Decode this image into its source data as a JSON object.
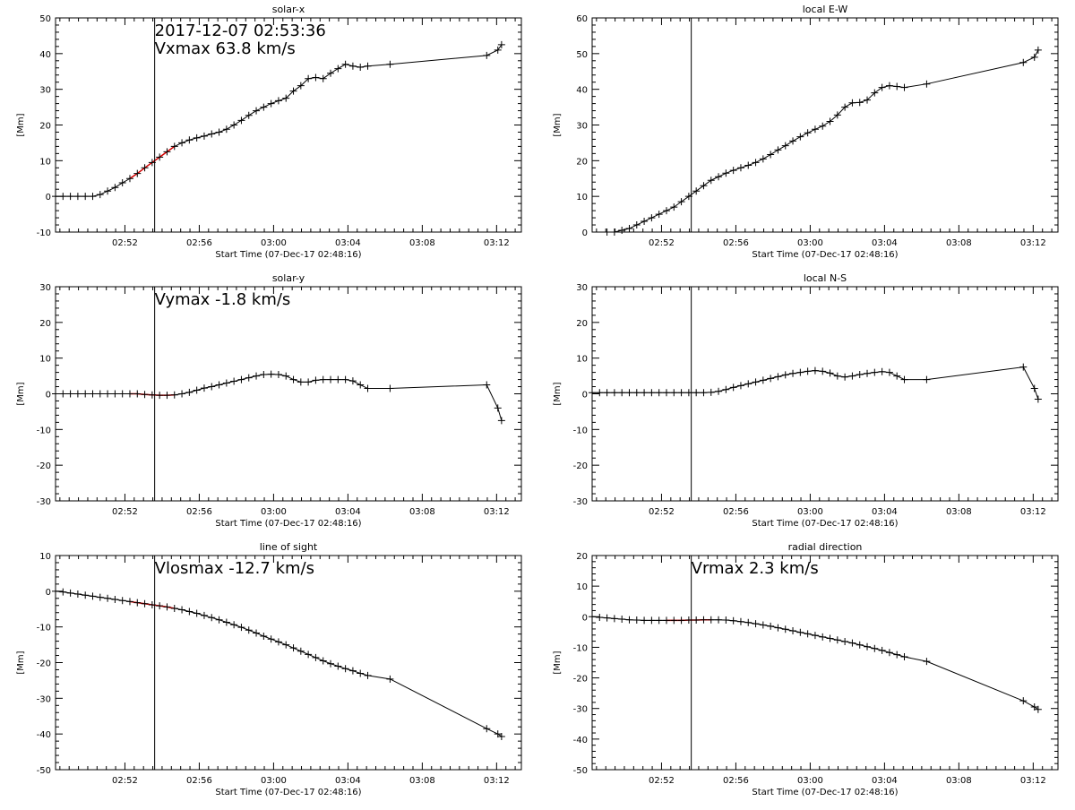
{
  "chart_data": [
    {
      "type": "line",
      "title": "solar-x",
      "xlabel": "Start Time (07-Dec-17 02:48:16)",
      "ylabel": "[Mm]",
      "xlim": [
        "02:48:16",
        "03:13:20"
      ],
      "ylim": [
        -10,
        50
      ],
      "yticks": [
        -10,
        0,
        10,
        20,
        30,
        40,
        50
      ],
      "xticks": [
        "02:52",
        "02:56",
        "03:00",
        "03:04",
        "03:08",
        "03:12"
      ],
      "marker_time": "02:53:36",
      "fit_range": [
        "02:52:00",
        "02:55:00"
      ],
      "annotations": [
        "2017-12-07 02:53:36",
        "Vxmax   63.8 km/s"
      ],
      "series": [
        {
          "values_color": "#000000",
          "x": [
            "02:48:16",
            "02:48:40",
            "02:49:04",
            "02:49:28",
            "02:49:52",
            "02:50:16",
            "02:50:40",
            "02:51:04",
            "02:51:28",
            "02:51:52",
            "02:52:16",
            "02:52:40",
            "02:53:04",
            "02:53:28",
            "02:53:52",
            "02:54:16",
            "02:54:40",
            "02:55:04",
            "02:55:28",
            "02:55:52",
            "02:56:16",
            "02:56:40",
            "02:57:04",
            "02:57:28",
            "02:57:52",
            "02:58:16",
            "02:58:40",
            "02:59:04",
            "02:59:28",
            "02:59:52",
            "03:00:16",
            "03:00:40",
            "03:01:04",
            "03:01:28",
            "03:01:52",
            "03:02:16",
            "03:02:40",
            "03:03:04",
            "03:03:28",
            "03:03:52",
            "03:04:16",
            "03:04:40",
            "03:05:04",
            "03:06:16",
            "03:11:28",
            "03:12:04",
            "03:12:16"
          ],
          "y": [
            0,
            0,
            0,
            0,
            0,
            0,
            0.5,
            1.5,
            2.5,
            3.8,
            5,
            6.4,
            8,
            9.5,
            11,
            12.5,
            14,
            15,
            15.8,
            16.4,
            16.9,
            17.5,
            18,
            18.8,
            20,
            21.3,
            22.7,
            24,
            25,
            26,
            26.8,
            27.5,
            29.5,
            31,
            33,
            33.3,
            33,
            34.5,
            35.8,
            37,
            36.5,
            36.2,
            36.5,
            37,
            39.5,
            41,
            42.5
          ]
        }
      ]
    },
    {
      "type": "line",
      "title": "local E-W",
      "xlabel": "Start Time (07-Dec-17 02:48:16)",
      "ylabel": "[Mm]",
      "xlim": [
        "02:48:16",
        "03:13:20"
      ],
      "ylim": [
        0,
        60
      ],
      "yticks": [
        0,
        10,
        20,
        30,
        40,
        50,
        60
      ],
      "xticks": [
        "02:52",
        "02:56",
        "03:00",
        "03:04",
        "03:08",
        "03:12"
      ],
      "marker_time": "02:53:36",
      "annotations": [],
      "series": [
        {
          "x": [
            "02:49:04",
            "02:49:28",
            "02:49:52",
            "02:50:16",
            "02:50:40",
            "02:51:04",
            "02:51:28",
            "02:51:52",
            "02:52:16",
            "02:52:40",
            "02:53:04",
            "02:53:28",
            "02:53:52",
            "02:54:16",
            "02:54:40",
            "02:55:04",
            "02:55:28",
            "02:55:52",
            "02:56:16",
            "02:56:40",
            "02:57:04",
            "02:57:28",
            "02:57:52",
            "02:58:16",
            "02:58:40",
            "02:59:04",
            "02:59:28",
            "02:59:52",
            "03:00:16",
            "03:00:40",
            "03:01:04",
            "03:01:28",
            "03:01:52",
            "03:02:16",
            "03:02:40",
            "03:03:04",
            "03:03:28",
            "03:03:52",
            "03:04:16",
            "03:04:40",
            "03:05:04",
            "03:06:16",
            "03:11:28",
            "03:12:04",
            "03:12:16"
          ],
          "y": [
            0,
            0,
            0.5,
            1,
            2,
            3,
            4,
            5,
            6,
            7,
            8.5,
            10,
            11.5,
            13,
            14.5,
            15.5,
            16.5,
            17.3,
            18,
            18.7,
            19.5,
            20.5,
            21.7,
            23,
            24.2,
            25.5,
            26.7,
            27.8,
            28.8,
            29.7,
            31,
            32.8,
            35,
            36.2,
            36.3,
            37,
            39,
            40.5,
            41,
            40.8,
            40.5,
            41.5,
            47.5,
            49,
            51
          ]
        }
      ]
    },
    {
      "type": "line",
      "title": "solar-y",
      "xlabel": "Start Time (07-Dec-17 02:48:16)",
      "ylabel": "[Mm]",
      "xlim": [
        "02:48:16",
        "03:13:20"
      ],
      "ylim": [
        -30,
        30
      ],
      "yticks": [
        -30,
        -20,
        -10,
        0,
        10,
        20,
        30
      ],
      "xticks": [
        "02:52",
        "02:56",
        "03:00",
        "03:04",
        "03:08",
        "03:12"
      ],
      "marker_time": "02:53:36",
      "fit_range": [
        "02:52:00",
        "02:55:00"
      ],
      "annotations": [
        "Vymax   -1.8 km/s"
      ],
      "series": [
        {
          "x": [
            "02:48:16",
            "02:48:40",
            "02:49:04",
            "02:49:28",
            "02:49:52",
            "02:50:16",
            "02:50:40",
            "02:51:04",
            "02:51:28",
            "02:51:52",
            "02:52:16",
            "02:52:40",
            "02:53:04",
            "02:53:28",
            "02:53:52",
            "02:54:16",
            "02:54:40",
            "02:55:04",
            "02:55:28",
            "02:55:52",
            "02:56:16",
            "02:56:40",
            "02:57:04",
            "02:57:28",
            "02:57:52",
            "02:58:16",
            "02:58:40",
            "02:59:04",
            "02:59:28",
            "02:59:52",
            "03:00:16",
            "03:00:40",
            "03:01:04",
            "03:01:28",
            "03:01:52",
            "03:02:16",
            "03:02:40",
            "03:03:04",
            "03:03:28",
            "03:03:52",
            "03:04:16",
            "03:04:40",
            "03:05:04",
            "03:06:16",
            "03:11:28",
            "03:12:04",
            "03:12:16"
          ],
          "y": [
            0,
            0,
            0,
            0,
            0,
            0,
            0,
            0,
            0,
            0,
            0,
            0,
            -0.2,
            -0.3,
            -0.4,
            -0.4,
            -0.3,
            0,
            0.4,
            1,
            1.6,
            2,
            2.5,
            3,
            3.5,
            4,
            4.5,
            5,
            5.4,
            5.5,
            5.4,
            5,
            4,
            3.3,
            3.3,
            3.8,
            4,
            4,
            4,
            4,
            3.6,
            2.5,
            1.5,
            1.5,
            2.5,
            -4,
            -7.5
          ]
        }
      ]
    },
    {
      "type": "line",
      "title": "local N-S",
      "xlabel": "Start Time (07-Dec-17 02:48:16)",
      "ylabel": "[Mm]",
      "xlim": [
        "02:48:16",
        "03:13:20"
      ],
      "ylim": [
        -30,
        30
      ],
      "yticks": [
        -30,
        -20,
        -10,
        0,
        10,
        20,
        30
      ],
      "xticks": [
        "02:52",
        "02:56",
        "03:00",
        "03:04",
        "03:08",
        "03:12"
      ],
      "marker_time": "02:53:36",
      "annotations": [],
      "series": [
        {
          "x": [
            "02:48:16",
            "02:48:40",
            "02:49:04",
            "02:49:28",
            "02:49:52",
            "02:50:16",
            "02:50:40",
            "02:51:04",
            "02:51:28",
            "02:51:52",
            "02:52:16",
            "02:52:40",
            "02:53:04",
            "02:53:28",
            "02:53:52",
            "02:54:16",
            "02:54:40",
            "02:55:04",
            "02:55:28",
            "02:55:52",
            "02:56:16",
            "02:56:40",
            "02:57:04",
            "02:57:28",
            "02:57:52",
            "02:58:16",
            "02:58:40",
            "02:59:04",
            "02:59:28",
            "02:59:52",
            "03:00:16",
            "03:00:40",
            "03:01:04",
            "03:01:28",
            "03:01:52",
            "03:02:16",
            "03:02:40",
            "03:03:04",
            "03:03:28",
            "03:03:52",
            "03:04:16",
            "03:04:40",
            "03:05:04",
            "03:06:16",
            "03:11:28",
            "03:12:04",
            "03:12:16"
          ],
          "y": [
            0.3,
            0.3,
            0.3,
            0.3,
            0.3,
            0.3,
            0.3,
            0.3,
            0.3,
            0.3,
            0.3,
            0.3,
            0.3,
            0.3,
            0.3,
            0.3,
            0.4,
            0.7,
            1.2,
            1.8,
            2.3,
            2.8,
            3.3,
            3.8,
            4.3,
            4.8,
            5.3,
            5.7,
            6,
            6.3,
            6.5,
            6.3,
            5.8,
            5,
            4.7,
            5,
            5.4,
            5.7,
            6,
            6.2,
            6,
            5,
            4,
            4,
            7.5,
            1.5,
            -1.5
          ]
        }
      ]
    },
    {
      "type": "line",
      "title": "line of sight",
      "xlabel": "Start Time (07-Dec-17 02:48:16)",
      "ylabel": "[Mm]",
      "xlim": [
        "02:48:16",
        "03:13:20"
      ],
      "ylim": [
        -50,
        10
      ],
      "yticks": [
        -50,
        -40,
        -30,
        -20,
        -10,
        0,
        10
      ],
      "xticks": [
        "02:52",
        "02:56",
        "03:00",
        "03:04",
        "03:08",
        "03:12"
      ],
      "marker_time": "02:53:36",
      "fit_range": [
        "02:52:00",
        "02:55:00"
      ],
      "annotations": [
        "Vlosmax  -12.7 km/s"
      ],
      "series": [
        {
          "x": [
            "02:48:16",
            "02:48:40",
            "02:49:04",
            "02:49:28",
            "02:49:52",
            "02:50:16",
            "02:50:40",
            "02:51:04",
            "02:51:28",
            "02:51:52",
            "02:52:16",
            "02:52:40",
            "02:53:04",
            "02:53:28",
            "02:53:52",
            "02:54:16",
            "02:54:40",
            "02:55:04",
            "02:55:28",
            "02:55:52",
            "02:56:16",
            "02:56:40",
            "02:57:04",
            "02:57:28",
            "02:57:52",
            "02:58:16",
            "02:58:40",
            "02:59:04",
            "02:59:28",
            "02:59:52",
            "03:00:16",
            "03:00:40",
            "03:01:04",
            "03:01:28",
            "03:01:52",
            "03:02:16",
            "03:02:40",
            "03:03:04",
            "03:03:28",
            "03:03:52",
            "03:04:16",
            "03:04:40",
            "03:05:04",
            "03:06:16",
            "03:11:28",
            "03:12:04",
            "03:12:16"
          ],
          "y": [
            0,
            -0.2,
            -0.5,
            -0.8,
            -1.1,
            -1.4,
            -1.7,
            -2,
            -2.3,
            -2.6,
            -2.9,
            -3.2,
            -3.5,
            -3.8,
            -4.1,
            -4.4,
            -4.8,
            -5.2,
            -5.7,
            -6.2,
            -6.8,
            -7.4,
            -8,
            -8.7,
            -9.4,
            -10.1,
            -10.9,
            -11.7,
            -12.6,
            -13.4,
            -14.2,
            -15,
            -15.9,
            -16.8,
            -17.7,
            -18.6,
            -19.5,
            -20.3,
            -21,
            -21.7,
            -22.3,
            -23,
            -23.6,
            -24.6,
            -38.5,
            -40,
            -40.7
          ]
        }
      ]
    },
    {
      "type": "line",
      "title": "radial direction",
      "xlabel": "Start Time (07-Dec-17 02:48:16)",
      "ylabel": "[Mm]",
      "xlim": [
        "02:48:16",
        "03:13:20"
      ],
      "ylim": [
        -50,
        20
      ],
      "yticks": [
        -50,
        -40,
        -30,
        -20,
        -10,
        0,
        10,
        20
      ],
      "xticks": [
        "02:52",
        "02:56",
        "03:00",
        "03:04",
        "03:08",
        "03:12"
      ],
      "marker_time": "02:53:36",
      "fit_range": [
        "02:52:00",
        "02:55:00"
      ],
      "annotations": [
        "Vrmax     2.3 km/s"
      ],
      "series": [
        {
          "x": [
            "02:48:16",
            "02:48:40",
            "02:49:04",
            "02:49:28",
            "02:49:52",
            "02:50:16",
            "02:50:40",
            "02:51:04",
            "02:51:28",
            "02:51:52",
            "02:52:16",
            "02:52:40",
            "02:53:04",
            "02:53:28",
            "02:53:52",
            "02:54:16",
            "02:54:40",
            "02:55:04",
            "02:55:28",
            "02:55:52",
            "02:56:16",
            "02:56:40",
            "02:57:04",
            "02:57:28",
            "02:57:52",
            "02:58:16",
            "02:58:40",
            "02:59:04",
            "02:59:28",
            "02:59:52",
            "03:00:16",
            "03:00:40",
            "03:01:04",
            "03:01:28",
            "03:01:52",
            "03:02:16",
            "03:02:40",
            "03:03:04",
            "03:03:28",
            "03:03:52",
            "03:04:16",
            "03:04:40",
            "03:05:04",
            "03:06:16",
            "03:11:28",
            "03:12:04",
            "03:12:16"
          ],
          "y": [
            0,
            -0.2,
            -0.4,
            -0.6,
            -0.8,
            -1,
            -1.1,
            -1.2,
            -1.2,
            -1.2,
            -1.2,
            -1.2,
            -1.2,
            -1.1,
            -1.1,
            -1,
            -1,
            -1,
            -1.1,
            -1.3,
            -1.6,
            -1.9,
            -2.3,
            -2.7,
            -3.1,
            -3.6,
            -4.1,
            -4.6,
            -5.1,
            -5.6,
            -6.1,
            -6.6,
            -7.1,
            -7.6,
            -8.1,
            -8.6,
            -9.2,
            -9.8,
            -10.4,
            -11,
            -11.7,
            -12.4,
            -13.1,
            -14.6,
            -27.5,
            -29.5,
            -30.3
          ]
        }
      ]
    }
  ]
}
